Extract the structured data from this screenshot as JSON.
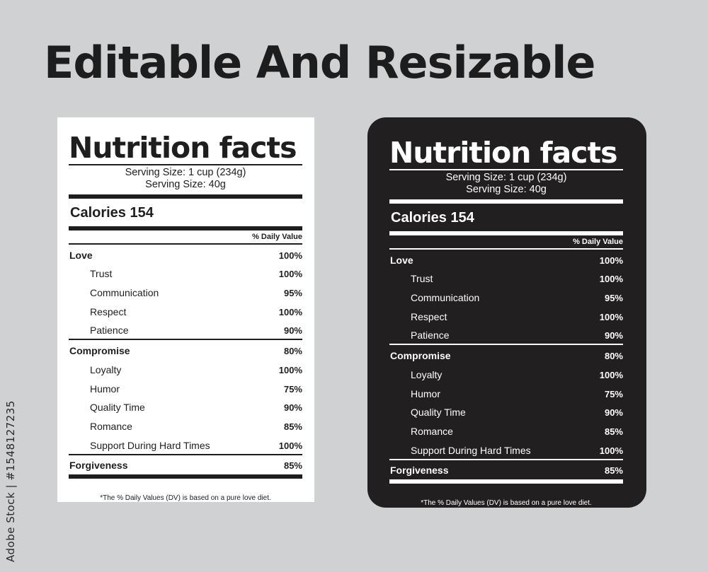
{
  "headline": "Editable And Resizable",
  "side_text": "Adobe Stock | #1548127235",
  "label": {
    "title": "Nutrition facts",
    "serving_1": "Serving Size: 1 cup (234g)",
    "serving_2": "Serving Size: 40g",
    "calories": "Calories 154",
    "dv_header": "% Daily Value",
    "groups": [
      {
        "name": "Love",
        "value": "100%",
        "items": [
          {
            "name": "Trust",
            "value": "100%"
          },
          {
            "name": "Communication",
            "value": "95%"
          },
          {
            "name": "Respect",
            "value": "100%"
          },
          {
            "name": "Patience",
            "value": "90%"
          }
        ]
      },
      {
        "name": "Compromise",
        "value": "80%",
        "items": [
          {
            "name": "Loyalty",
            "value": "100%"
          },
          {
            "name": "Humor",
            "value": "75%"
          },
          {
            "name": "Quality Time",
            "value": "90%"
          },
          {
            "name": "Romance",
            "value": "85%"
          },
          {
            "name": "Support During Hard Times",
            "value": "100%"
          }
        ]
      },
      {
        "name": "Forgiveness",
        "value": "85%",
        "items": []
      }
    ],
    "footnote": "*The % Daily Values (DV) is based on a pure love diet."
  },
  "colors": {
    "background": "#cfd1d2",
    "light_label": "#ffffff",
    "dark_label": "#211f20",
    "ink": "#1e1e1e"
  }
}
